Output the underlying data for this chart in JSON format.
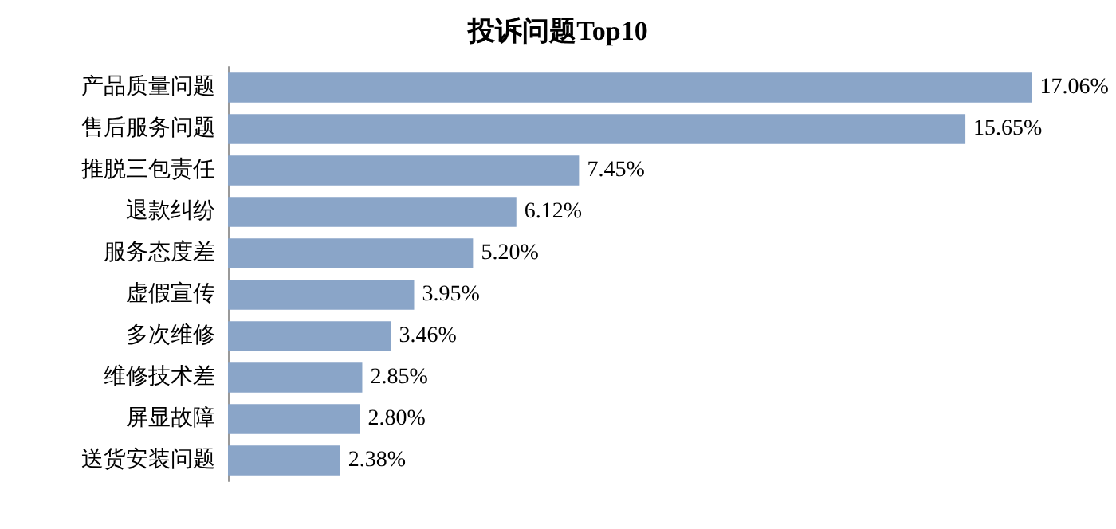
{
  "chart_data": {
    "type": "bar",
    "title": "投诉问题Top10",
    "orientation": "horizontal",
    "categories": [
      "产品质量问题",
      "售后服务问题",
      "推脱三包责任",
      "退款纠纷",
      "服务态度差",
      "虚假宣传",
      "多次维修",
      "维修技术差",
      "屏显故障",
      "送货安装问题"
    ],
    "values": [
      17.06,
      15.65,
      7.45,
      6.12,
      5.2,
      3.95,
      3.46,
      2.85,
      2.8,
      2.38
    ],
    "value_labels": [
      "17.06%",
      "15.65%",
      "7.45%",
      "6.12%",
      "5.20%",
      "3.95%",
      "3.46%",
      "2.85%",
      "2.80%",
      "2.38%"
    ],
    "color": "#8aa5c8"
  }
}
